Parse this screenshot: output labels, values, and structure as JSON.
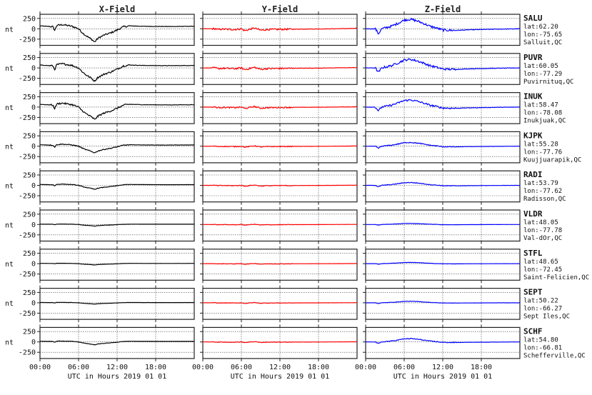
{
  "chart_data": {
    "type": "line",
    "columns": [
      "X-Field",
      "Y-Field",
      "Z-Field"
    ],
    "series_colors": [
      "#000000",
      "#ff0000",
      "#0000ff"
    ],
    "ylabel": "nt",
    "ylim": [
      -400,
      350
    ],
    "yticks": [
      250,
      0,
      -250
    ],
    "xlim": [
      0,
      24
    ],
    "xticks": [
      0,
      6,
      12,
      18
    ],
    "xtick_labels": [
      "00:00",
      "06:00",
      "12:00",
      "18:00"
    ],
    "xlabel": "UTC in Hours  2019 01 01",
    "grid": true,
    "stations": [
      {
        "code": "SALU",
        "lat": "lat:62.20",
        "lon": "lon:-75.65",
        "place": "Salluit,QC",
        "amp": [
          1.0,
          0.9,
          1.0
        ]
      },
      {
        "code": "PUVR",
        "lat": "lat:60.05",
        "lon": "lon:-77.29",
        "place": "Puvirnituq,QC",
        "amp": [
          1.0,
          0.85,
          0.9
        ]
      },
      {
        "code": "INUK",
        "lat": "lat:58.47",
        "lon": "lon:-78.08",
        "place": "Inukjuak,QC",
        "amp": [
          0.95,
          0.7,
          0.75
        ]
      },
      {
        "code": "KJPK",
        "lat": "lat:55.28",
        "lon": "lon:-77.76",
        "place": "Kuujjuarapik,QC",
        "amp": [
          0.5,
          0.45,
          0.4
        ]
      },
      {
        "code": "RADI",
        "lat": "lat:53.79",
        "lon": "lon:-77.62",
        "place": "Radisson,QC",
        "amp": [
          0.3,
          0.4,
          0.3
        ]
      },
      {
        "code": "VLDR",
        "lat": "lat:48.05",
        "lon": "lon:-77.78",
        "place": "Val-dOr,QC",
        "amp": [
          0.12,
          0.3,
          0.12
        ]
      },
      {
        "code": "STFL",
        "lat": "lat:48.65",
        "lon": "lon:-72.45",
        "place": "Saint-Felicien,QC",
        "amp": [
          0.1,
          0.28,
          0.13
        ]
      },
      {
        "code": "SEPT",
        "lat": "lat:50.22",
        "lon": "lon:-66.27",
        "place": "Sept Iles,QC",
        "amp": [
          0.1,
          0.28,
          0.16
        ]
      },
      {
        "code": "SCHF",
        "lat": "lat:54.80",
        "lon": "lon:-66.81",
        "place": "Schefferville,QC",
        "amp": [
          0.22,
          0.32,
          0.35
        ]
      }
    ],
    "base_shapes": {
      "X": [
        [
          0,
          70
        ],
        [
          2,
          50
        ],
        [
          2.3,
          -40
        ],
        [
          2.6,
          80
        ],
        [
          3.5,
          100
        ],
        [
          5,
          60
        ],
        [
          6,
          0
        ],
        [
          6.5,
          -80
        ],
        [
          7,
          -150
        ],
        [
          8,
          -250
        ],
        [
          8.5,
          -320
        ],
        [
          9,
          -230
        ],
        [
          10,
          -150
        ],
        [
          11,
          -100
        ],
        [
          12,
          -30
        ],
        [
          13,
          50
        ],
        [
          14,
          70
        ],
        [
          16,
          60
        ],
        [
          20,
          55
        ],
        [
          24,
          60
        ]
      ],
      "Y": [
        [
          0,
          0
        ],
        [
          2,
          0
        ],
        [
          2.3,
          -20
        ],
        [
          3,
          -10
        ],
        [
          5,
          -20
        ],
        [
          6,
          0
        ],
        [
          6.5,
          -50
        ],
        [
          7,
          -30
        ],
        [
          8,
          20
        ],
        [
          9,
          -40
        ],
        [
          10,
          -20
        ],
        [
          12,
          -15
        ],
        [
          14,
          -10
        ],
        [
          18,
          -5
        ],
        [
          24,
          10
        ]
      ],
      "Z": [
        [
          0,
          0
        ],
        [
          1.5,
          0
        ],
        [
          2,
          -120
        ],
        [
          2.5,
          0
        ],
        [
          4,
          60
        ],
        [
          5,
          130
        ],
        [
          6,
          210
        ],
        [
          7,
          230
        ],
        [
          8,
          190
        ],
        [
          9,
          130
        ],
        [
          10,
          60
        ],
        [
          11,
          20
        ],
        [
          12,
          -30
        ],
        [
          14,
          -40
        ],
        [
          16,
          -25
        ],
        [
          20,
          -10
        ],
        [
          24,
          0
        ]
      ]
    },
    "noise": [
      40,
      45,
      55
    ]
  }
}
